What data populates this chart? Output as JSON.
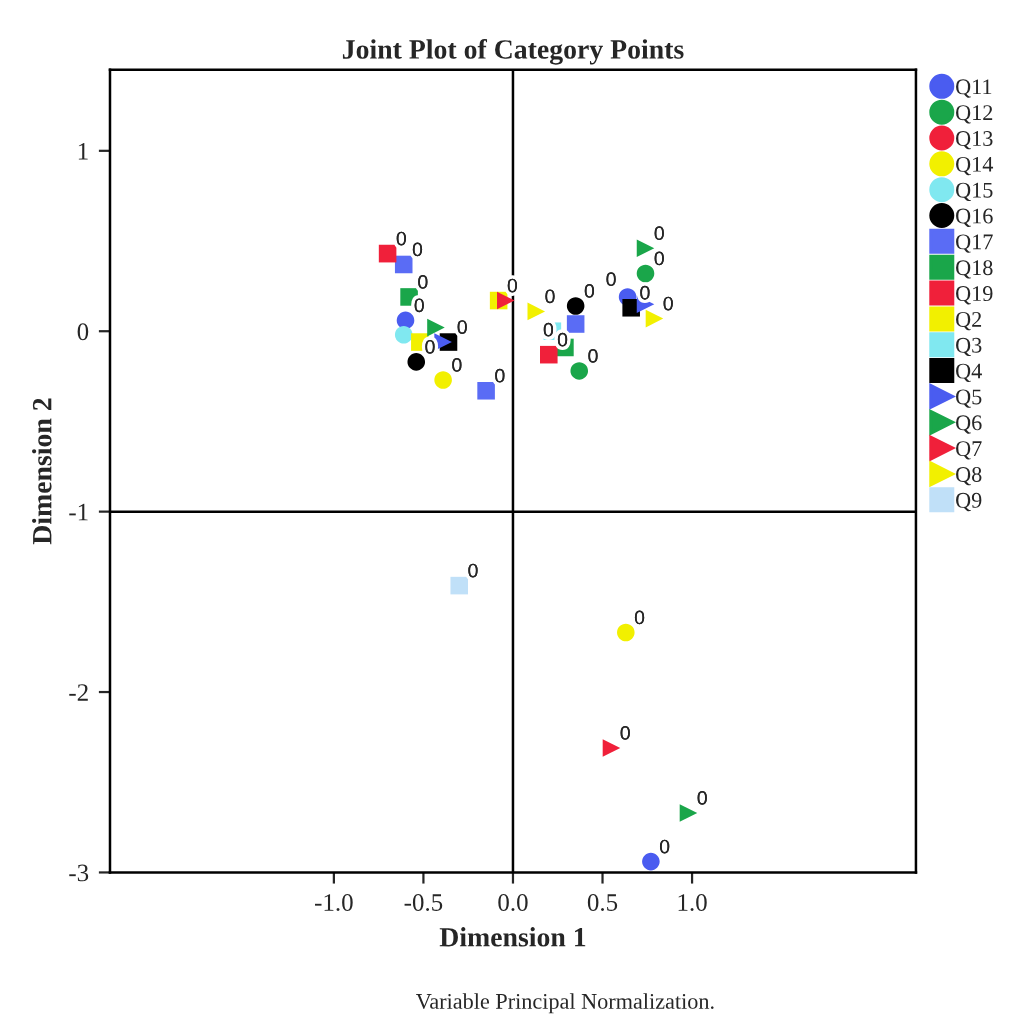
{
  "chart_data": {
    "type": "scatter",
    "title": "Joint Plot of Category Points",
    "xlabel": "Dimension 1",
    "ylabel": "Dimension 2",
    "xlim": [
      -2.25,
      2.25
    ],
    "ylim": [
      -3.0,
      1.45
    ],
    "xticks": [
      {
        "value": -1.0,
        "label": "-1.0"
      },
      {
        "value": -0.5,
        "label": "-0.5"
      },
      {
        "value": 0.0,
        "label": "0.0"
      },
      {
        "value": 0.5,
        "label": "0.5"
      },
      {
        "value": 1.0,
        "label": "1.0"
      }
    ],
    "yticks": [
      -3,
      -2,
      -1,
      0,
      1
    ],
    "grid": false,
    "legend": "right",
    "ref_lines": [
      {
        "axis": "x",
        "value": 0
      },
      {
        "axis": "y",
        "value": -1
      }
    ],
    "annotations": [
      "Variable Principal Normalization.",
      {
        "text": "0",
        "x": -0.6,
        "y": 0.06
      },
      {
        "text": "0",
        "x": 0.64,
        "y": 0.19
      },
      {
        "text": "0",
        "x": 0.77,
        "y": -2.94
      },
      {
        "text": "0",
        "x": 0.74,
        "y": 0.32
      },
      {
        "text": "0",
        "x": 0.37,
        "y": -0.22
      },
      {
        "text": "0",
        "x": -0.39,
        "y": -0.27
      },
      {
        "text": "0",
        "x": 0.63,
        "y": -1.67
      },
      {
        "text": "0",
        "x": -0.54,
        "y": -0.17
      },
      {
        "text": "0",
        "x": 0.35,
        "y": 0.14
      },
      {
        "text": "0",
        "x": -0.61,
        "y": 0.37
      },
      {
        "text": "0",
        "x": -0.15,
        "y": -0.33
      },
      {
        "text": "0",
        "x": -0.58,
        "y": 0.19
      },
      {
        "text": "0",
        "x": 0.29,
        "y": -0.09
      },
      {
        "text": "0",
        "x": -0.7,
        "y": 0.43
      },
      {
        "text": "0",
        "x": 0.2,
        "y": -0.13
      },
      {
        "text": "0",
        "x": -0.08,
        "y": 0.17
      },
      {
        "text": "0",
        "x": -0.36,
        "y": -0.06
      },
      {
        "text": "0",
        "x": 0.66,
        "y": 0.13
      },
      {
        "text": "0",
        "x": 0.74,
        "y": 0.46
      },
      {
        "text": "0",
        "x": 0.98,
        "y": -2.67
      },
      {
        "text": "0",
        "x": 0.55,
        "y": -2.31
      },
      {
        "text": "0",
        "x": 0.13,
        "y": 0.11
      },
      {
        "text": "0",
        "x": 0.79,
        "y": 0.07
      },
      {
        "text": "0",
        "x": -0.3,
        "y": -1.41
      }
    ],
    "series": [
      {
        "name": "Q11",
        "color": "#4a5cf0",
        "marker": "circle",
        "x": [
          -0.6,
          0.64,
          0.77
        ],
        "values": [
          0.06,
          0.19,
          -2.94
        ]
      },
      {
        "name": "Q12",
        "color": "#1aa64a",
        "marker": "circle",
        "x": [
          0.74,
          0.37
        ],
        "values": [
          0.32,
          -0.22
        ]
      },
      {
        "name": "Q13",
        "color": "#f0203a",
        "marker": "circle"
      },
      {
        "name": "Q14",
        "color": "#f2f000",
        "marker": "circle",
        "x": [
          -0.39,
          0.63
        ],
        "values": [
          -0.27,
          -1.67
        ]
      },
      {
        "name": "Q15",
        "color": "#80e8f0",
        "marker": "circle",
        "x": [
          -0.61
        ],
        "values": [
          -0.02
        ]
      },
      {
        "name": "Q16",
        "color": "#000000",
        "marker": "circle",
        "x": [
          -0.54,
          0.35
        ],
        "values": [
          -0.17,
          0.14
        ]
      },
      {
        "name": "Q17",
        "color": "#5a6cf5",
        "marker": "square",
        "x": [
          -0.61,
          -0.15,
          0.35
        ],
        "values": [
          0.37,
          -0.33,
          0.04
        ]
      },
      {
        "name": "Q18",
        "color": "#1aa64a",
        "marker": "square",
        "x": [
          -0.58,
          0.29
        ],
        "values": [
          0.19,
          -0.09
        ]
      },
      {
        "name": "Q19",
        "color": "#f0203a",
        "marker": "square",
        "x": [
          -0.7,
          0.2
        ],
        "values": [
          0.43,
          -0.13
        ]
      },
      {
        "name": "Q2",
        "color": "#f2f000",
        "marker": "square",
        "x": [
          -0.52,
          -0.08
        ],
        "values": [
          -0.06,
          0.17
        ]
      },
      {
        "name": "Q3",
        "color": "#80e8f0",
        "marker": "square",
        "x": [
          0.22
        ],
        "values": [
          0.0
        ]
      },
      {
        "name": "Q4",
        "color": "#000000",
        "marker": "square",
        "x": [
          -0.36,
          0.66
        ],
        "values": [
          -0.06,
          0.13
        ]
      },
      {
        "name": "Q5",
        "color": "#4a5cf0",
        "marker": "triangle",
        "x": [
          -0.39,
          0.74
        ],
        "values": [
          -0.06,
          0.15
        ]
      },
      {
        "name": "Q6",
        "color": "#1aa64a",
        "marker": "triangle",
        "x": [
          -0.43,
          0.74,
          0.98
        ],
        "values": [
          0.02,
          0.46,
          -2.67
        ]
      },
      {
        "name": "Q7",
        "color": "#f0203a",
        "marker": "triangle",
        "x": [
          -0.04,
          0.55
        ],
        "values": [
          0.17,
          -2.31
        ]
      },
      {
        "name": "Q8",
        "color": "#f2f000",
        "marker": "triangle",
        "x": [
          0.13,
          0.79
        ],
        "values": [
          0.11,
          0.07
        ]
      },
      {
        "name": "Q9",
        "color": "#c0e0f8",
        "marker": "square",
        "x": [
          -0.3
        ],
        "values": [
          -1.41
        ]
      }
    ]
  }
}
